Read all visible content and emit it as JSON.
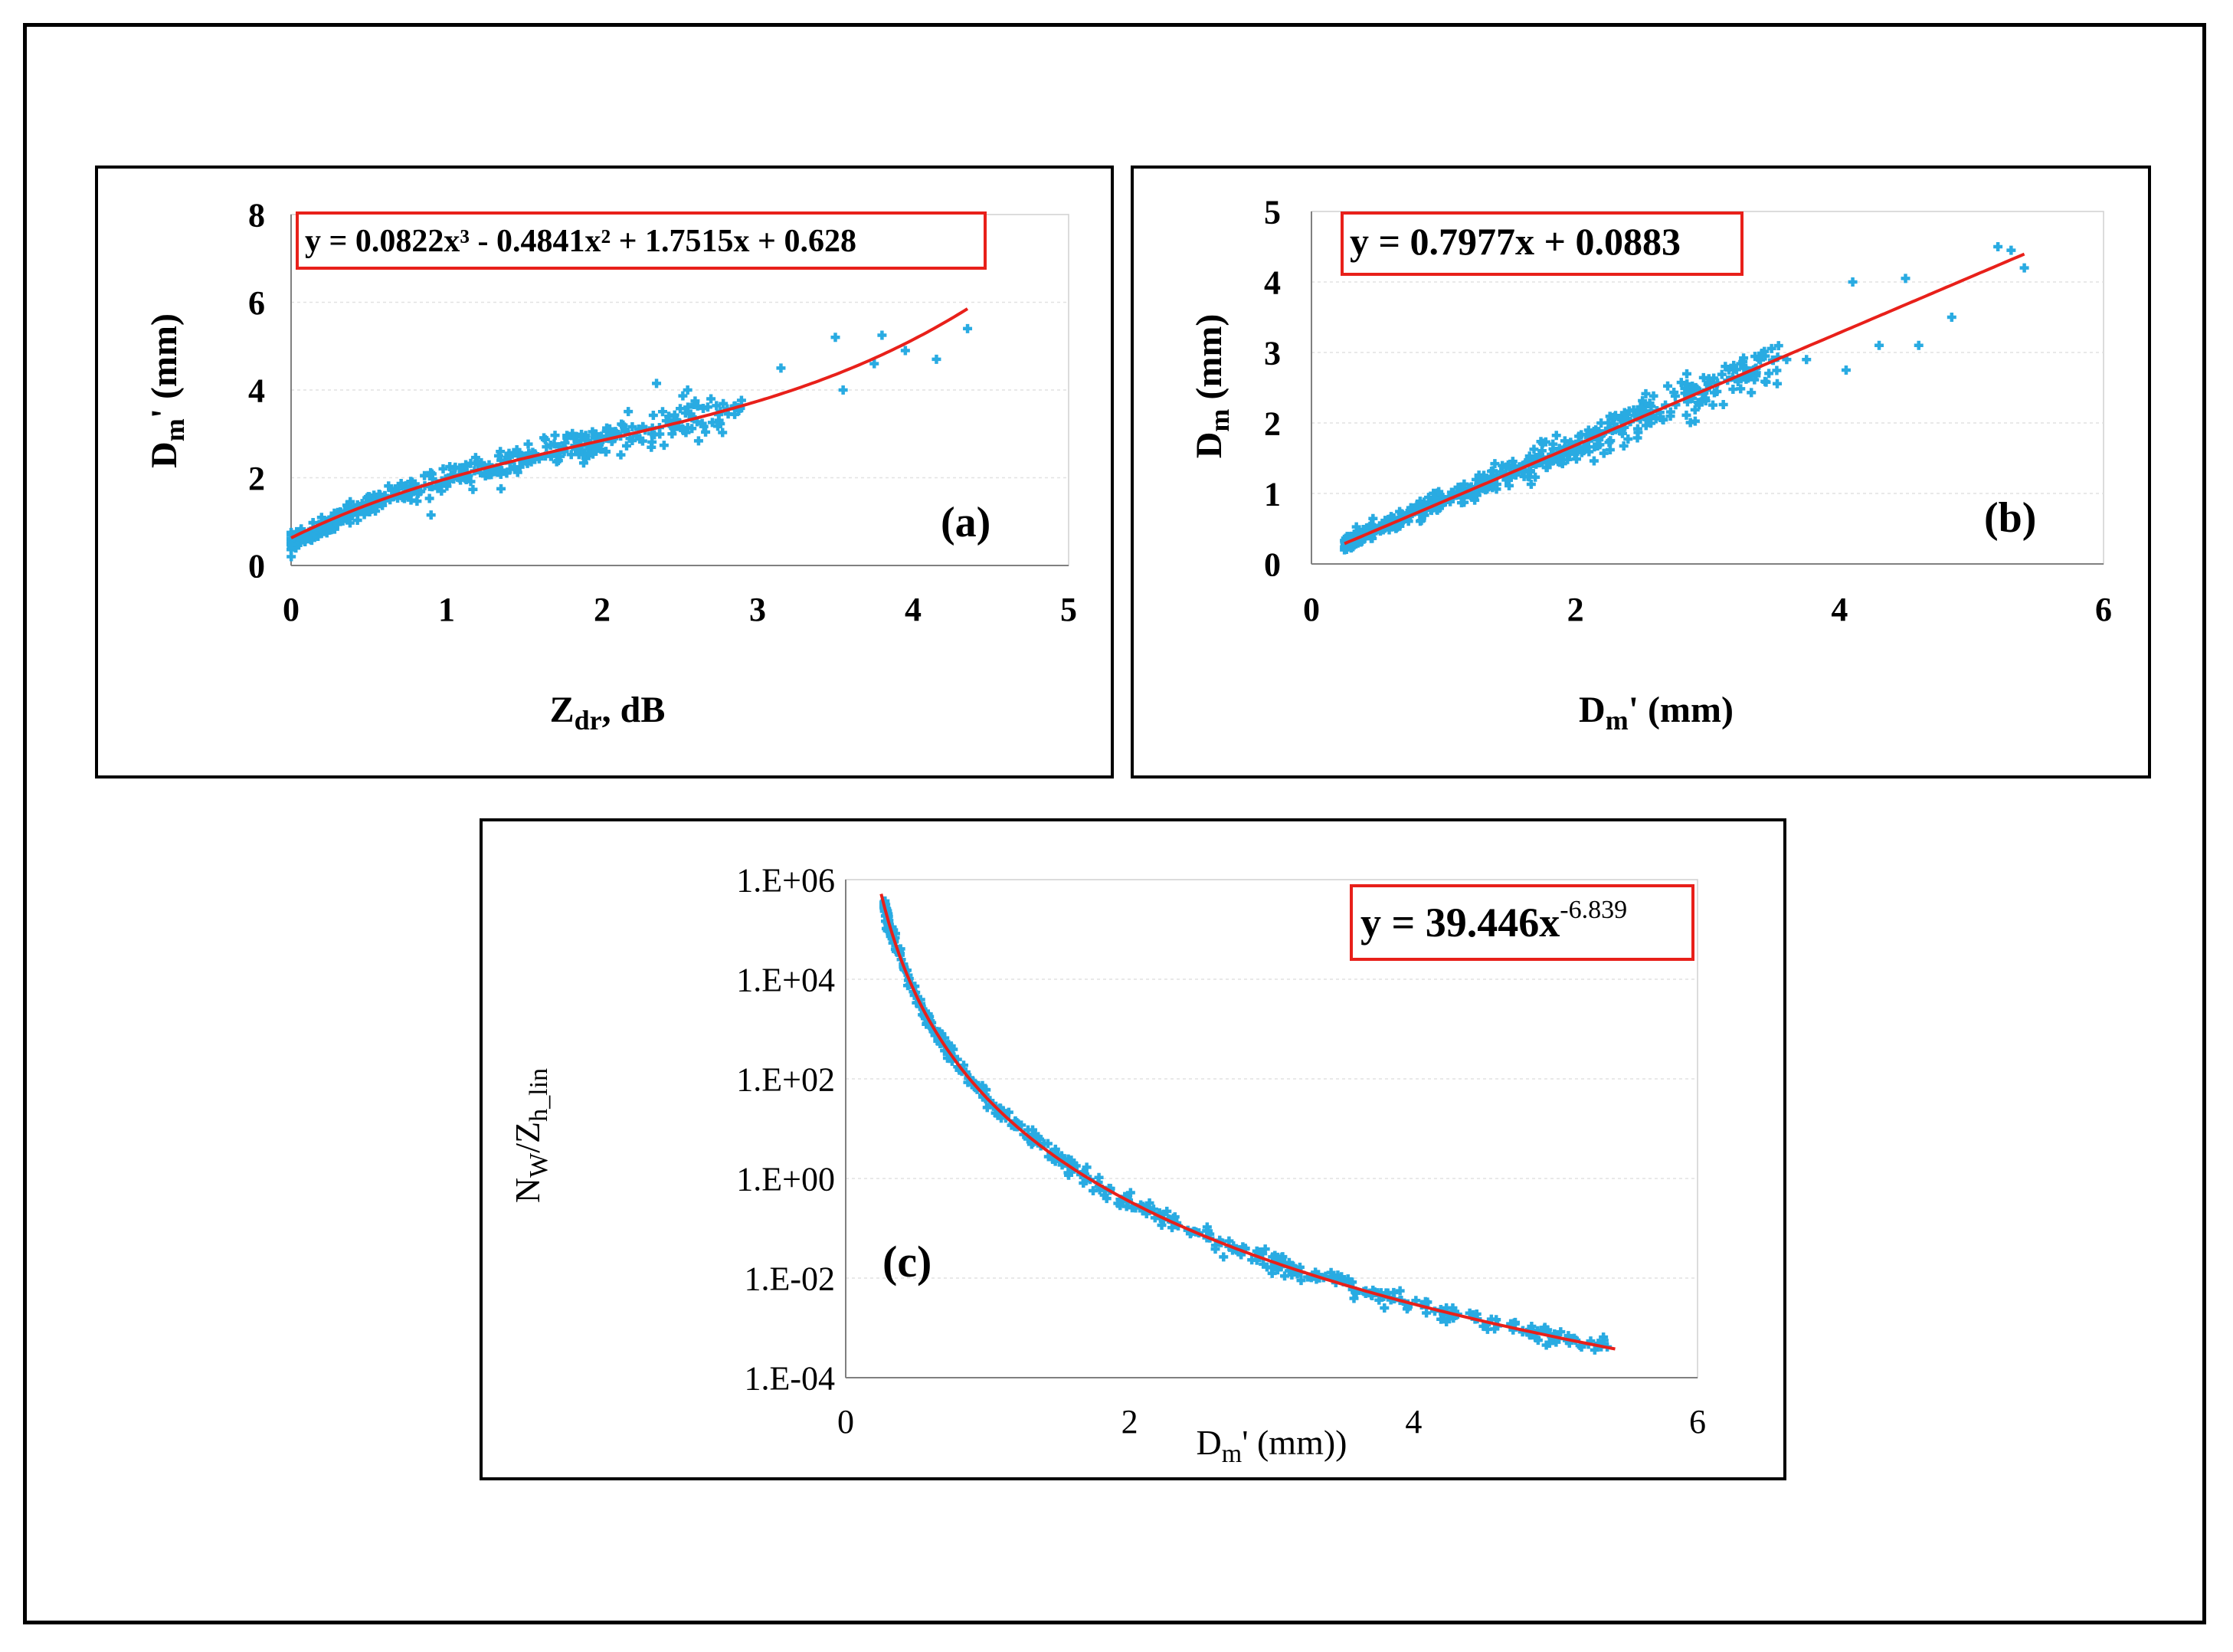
{
  "chart_data": [
    {
      "panel": "(a)",
      "type": "scatter",
      "xlabel": "Zdr, dB",
      "ylabel": "Dm' (mm)",
      "xlim": [
        0,
        5
      ],
      "ylim": [
        0,
        8
      ],
      "xticks": [
        "0",
        "1",
        "2",
        "3",
        "4",
        "5"
      ],
      "yticks": [
        "0",
        "2",
        "4",
        "6",
        "8"
      ],
      "equation": "y = 0.0822x³ - 0.4841x² + 1.7515x + 0.628",
      "fit": {
        "kind": "polynomial",
        "coeffs": [
          0.628,
          1.7515,
          -0.4841,
          0.0822
        ],
        "x_range": [
          0,
          4.35
        ]
      },
      "point_color": "#29abe2",
      "fit_color": "#e8201a",
      "outliers": [
        [
          2.35,
          4.15
        ],
        [
          2.55,
          4.0
        ],
        [
          2.7,
          3.8
        ],
        [
          3.15,
          4.5
        ],
        [
          3.5,
          5.2
        ],
        [
          3.55,
          4.0
        ],
        [
          3.75,
          4.6
        ],
        [
          3.8,
          5.25
        ],
        [
          3.95,
          4.9
        ],
        [
          4.15,
          4.7
        ],
        [
          4.35,
          5.4
        ],
        [
          2.45,
          3.0
        ],
        [
          0.9,
          1.15
        ],
        [
          1.35,
          1.75
        ]
      ]
    },
    {
      "panel": "(b)",
      "type": "scatter",
      "xlabel": "Dm' (mm)",
      "ylabel": "Dm (mm)",
      "xlim": [
        0,
        6
      ],
      "ylim": [
        0,
        5
      ],
      "xticks": [
        "0",
        "2",
        "4",
        "6"
      ],
      "yticks": [
        "0",
        "1",
        "2",
        "3",
        "4",
        "5"
      ],
      "equation": "y = 0.7977x + 0.0883",
      "fit": {
        "kind": "linear",
        "coeffs": [
          0.0883,
          0.7977
        ],
        "x_range": [
          0.25,
          5.4
        ]
      },
      "point_color": "#29abe2",
      "fit_color": "#e8201a",
      "outliers": [
        [
          4.1,
          4.0
        ],
        [
          4.5,
          4.05
        ],
        [
          4.05,
          2.75
        ],
        [
          4.3,
          3.1
        ],
        [
          4.6,
          3.1
        ],
        [
          4.85,
          3.5
        ],
        [
          5.2,
          4.5
        ],
        [
          5.3,
          4.45
        ],
        [
          5.4,
          4.2
        ],
        [
          3.6,
          2.9
        ],
        [
          3.75,
          2.9
        ]
      ]
    },
    {
      "panel": "(c)",
      "type": "scatter",
      "xlabel": "Dm' (mm))",
      "ylabel": "Nw/Zh_lin",
      "xlim": [
        0,
        6
      ],
      "ylim": [
        0.0001,
        1000000
      ],
      "yscale": "log",
      "xticks": [
        "0",
        "2",
        "4",
        "6"
      ],
      "yticks": [
        "1.E-04",
        "1.E-02",
        "1.E+00",
        "1.E+02",
        "1.E+04",
        "1.E+06"
      ],
      "equation": "y = 39.446x",
      "equation_exponent": "-6.839",
      "fit": {
        "kind": "power",
        "a": 39.446,
        "b": -6.839,
        "x_range": [
          0.25,
          5.42
        ]
      },
      "point_color": "#29abe2",
      "fit_color": "#e8201a",
      "outliers": []
    }
  ],
  "labels": {
    "a": "(a)",
    "b": "(b)",
    "c": "(c)",
    "eq_a": "y = 0.0822x³ - 0.4841x² + 1.7515x + 0.628",
    "eq_b": "y = 0.7977x + 0.0883",
    "eq_c_base": "y = 39.446x",
    "eq_c_exp": "-6.839",
    "xlabel_a_main": "Z",
    "xlabel_a_sub": "dr",
    "xlabel_a_rest": ", dB",
    "ylabel_a_main": "D",
    "ylabel_a_sub": "m",
    "ylabel_a_rest": "' (mm)",
    "xlabel_b_main": "D",
    "xlabel_b_sub": "m",
    "xlabel_b_rest": "' (mm)",
    "ylabel_b_main": "D",
    "ylabel_b_sub": "m",
    "ylabel_b_rest": " (mm)",
    "xlabel_c_main": "D",
    "xlabel_c_sub": "m",
    "xlabel_c_rest": "' (mm))",
    "ylabel_c_main1": "N",
    "ylabel_c_sub1": "W",
    "ylabel_c_mid": "/Z",
    "ylabel_c_sub2": "h_lin"
  }
}
